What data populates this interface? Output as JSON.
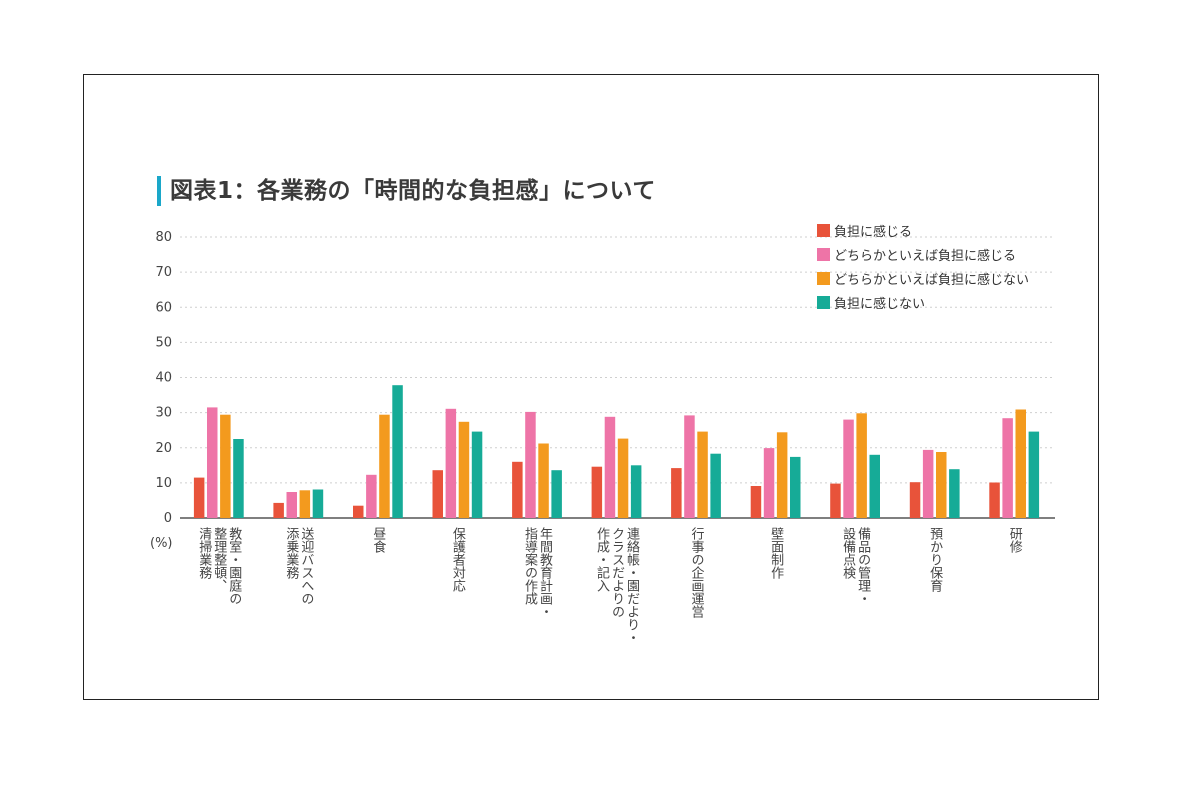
{
  "title": "図表1：各業務の「時間的な負担感」について",
  "unit_label": "(%)",
  "colors": {
    "series": [
      "#e8533a",
      "#ee74a7",
      "#f39a1e",
      "#16ab97"
    ],
    "accent": "#1aa7c9",
    "grid": "#cfcfcf"
  },
  "chart_data": {
    "type": "bar",
    "title": "図表1：各業務の「時間的な負担感」について",
    "xlabel": "",
    "ylabel": "(%)",
    "ylim": [
      0,
      80
    ],
    "yticks": [
      0,
      10,
      20,
      30,
      40,
      50,
      60,
      70,
      80
    ],
    "grid": true,
    "legend_position": "top-right",
    "categories": [
      "教室・園庭の整理整頓、清掃業務",
      "送迎バスへの添乗業務",
      "昼食",
      "保護者対応",
      "年間教育計画・指導案の作成",
      "連絡帳・園だより・クラスだよりの作成・記入",
      "行事の企画運営",
      "壁面制作",
      "備品の管理・設備点検",
      "預かり保育",
      "研修"
    ],
    "category_lines": [
      [
        "教室・園庭の",
        "整理整頓、",
        "清掃業務"
      ],
      [
        "送迎バスへの",
        "添乗業務"
      ],
      [
        "昼食"
      ],
      [
        "保護者対応"
      ],
      [
        "年間教育計画・",
        "指導案の作成"
      ],
      [
        "連絡帳・園だより・",
        "クラスだよりの",
        "作成・記入"
      ],
      [
        "行事の企画運営"
      ],
      [
        "壁面制作"
      ],
      [
        "備品の管理・",
        "設備点検"
      ],
      [
        "預かり保育"
      ],
      [
        "研修"
      ]
    ],
    "series": [
      {
        "name": "負担に感じる",
        "values": [
          11.5,
          4.3,
          3.5,
          13.6,
          16.0,
          14.6,
          14.2,
          9.1,
          9.8,
          10.2,
          10.1
        ]
      },
      {
        "name": "どちらかといえば負担に感じる",
        "values": [
          31.5,
          7.4,
          12.3,
          31.1,
          30.2,
          28.8,
          29.2,
          19.9,
          28.0,
          19.4,
          28.4
        ]
      },
      {
        "name": "どちらかといえば負担に感じない",
        "values": [
          29.4,
          7.9,
          29.4,
          27.4,
          21.2,
          22.6,
          24.6,
          24.4,
          29.8,
          18.8,
          30.9
        ]
      },
      {
        "name": "負担に感じない",
        "values": [
          22.5,
          8.1,
          37.8,
          24.6,
          13.6,
          15.0,
          18.3,
          17.4,
          18.0,
          13.9,
          24.6
        ]
      }
    ]
  }
}
